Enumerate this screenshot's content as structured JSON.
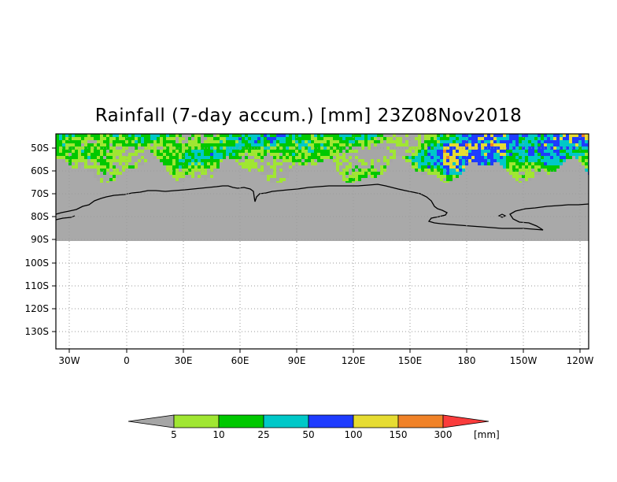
{
  "title": "Rainfall (7-day accum.) [mm] 23Z08Nov2018",
  "map": {
    "lat_labels": [
      "50S",
      "60S",
      "70S",
      "80S",
      "90S",
      "100S",
      "110S",
      "120S",
      "130S"
    ],
    "lon_labels": [
      "30W",
      "0",
      "30E",
      "60E",
      "90E",
      "120E",
      "150E",
      "180",
      "150W",
      "120W"
    ],
    "land_color": "#a9a9a9",
    "grid": "dotted"
  },
  "legend": {
    "unit": "[mm]",
    "thresholds": [
      "5",
      "10",
      "25",
      "50",
      "100",
      "150",
      "300"
    ],
    "colors": [
      "#a6a6a6",
      "#a0e632",
      "#00c800",
      "#00c8c8",
      "#1e3cff",
      "#e6dc32",
      "#f08228",
      "#fa3c3c"
    ]
  }
}
